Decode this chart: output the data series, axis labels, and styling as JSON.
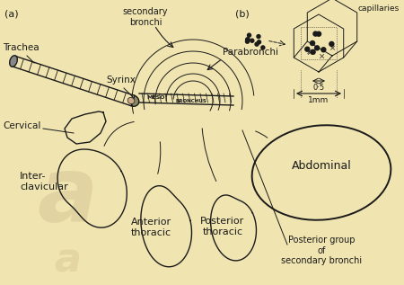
{
  "bg_color": "#f0e4b0",
  "label_a": "(a)",
  "label_b": "(b)",
  "label_secondary_bronchi_top": "secondary\nbronchi",
  "label_capillaries": "capillaries",
  "label_trachea": "Trachea",
  "label_syrinx": "Syrinx",
  "label_parabronchi": "Parabronchi",
  "label_cervical": "Cervical",
  "label_meso": "MESO",
  "label_bronchus": "BRONCHUS",
  "label_interclavicular": "Inter-\nclavicular",
  "label_anterior_thoracic": "Anterior\nthoracic",
  "label_posterior_thoracic": "Posterior\nthoracic",
  "label_abdominal": "Abdominal",
  "label_posterior_group": "Posterior group\nof\nsecondary bronchi",
  "line_color": "#1a1a1a",
  "watermark_color": "#c8b888"
}
